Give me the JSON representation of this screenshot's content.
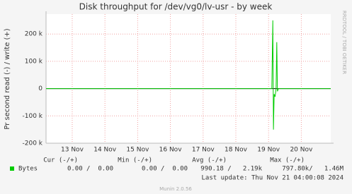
{
  "chart_data": {
    "type": "line",
    "title": "Disk throughput for /dev/vg0/lv-usr - by week",
    "y_label": "Pr second read (-) / write (+)",
    "watermark": "RRDTOOL / TOBI OETIKER",
    "xlim": [
      12.2,
      20.9
    ],
    "xticks": [
      {
        "value": 13,
        "label": "13 Nov"
      },
      {
        "value": 14,
        "label": "14 Nov"
      },
      {
        "value": 15,
        "label": "15 Nov"
      },
      {
        "value": 16,
        "label": "16 Nov"
      },
      {
        "value": 17,
        "label": "17 Nov"
      },
      {
        "value": 18,
        "label": "18 Nov"
      },
      {
        "value": 19,
        "label": "19 Nov"
      },
      {
        "value": 20,
        "label": "20 Nov"
      }
    ],
    "ylim": [
      -200000,
      273000
    ],
    "yticks": [
      {
        "value": -200000,
        "label": "-200 k"
      },
      {
        "value": -100000,
        "label": "-100 k"
      },
      0,
      {
        "value": 100000,
        "label": "100 k"
      },
      {
        "value": 200000,
        "label": "200 k"
      }
    ],
    "grid": true,
    "series": [
      {
        "name": "Bytes",
        "color": "#00cc00",
        "x": [
          12.2,
          13.0,
          14.0,
          15.0,
          16.0,
          17.0,
          18.0,
          19.1,
          19.13,
          19.15,
          19.17,
          19.2,
          19.23,
          19.25,
          19.27,
          19.3,
          19.33,
          20.0,
          20.9
        ],
        "values": [
          0,
          0,
          0,
          0,
          0,
          0,
          0,
          0,
          250000,
          -150000,
          -20000,
          -30000,
          0,
          170000,
          -10000,
          0,
          0,
          0,
          0
        ]
      }
    ],
    "legend_table": {
      "headers": [
        "Cur (-/+)",
        "Min (-/+)",
        "Avg (-/+)",
        "Max (-/+)"
      ],
      "rows": [
        {
          "name": "Bytes",
          "cells": [
            "0.00 /  0.00",
            "0.00 /  0.00",
            "990.18 /   2.19k",
            "797.80k/   1.46M"
          ]
        }
      ]
    },
    "last_update": "Last update: Thu Nov 21 04:00:08 2024",
    "footer": "Munin 2.0.56"
  }
}
